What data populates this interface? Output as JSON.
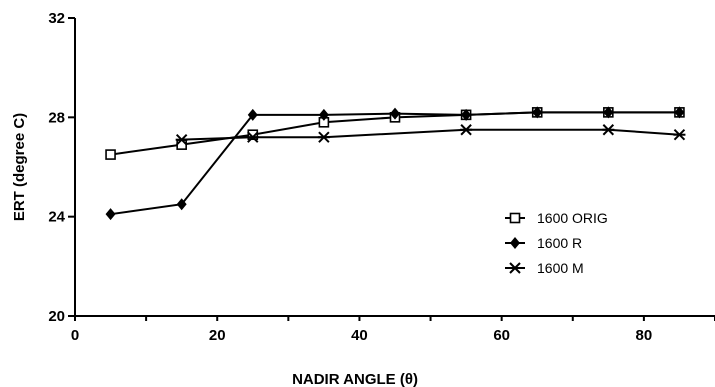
{
  "chart_data": {
    "type": "line",
    "title": "",
    "xlabel": "NADIR ANGLE (θ)",
    "ylabel": "ERT (degree C)",
    "xlim": [
      0,
      90
    ],
    "ylim": [
      20,
      32
    ],
    "xticks": [
      0,
      20,
      40,
      60,
      80
    ],
    "yticks": [
      20,
      24,
      28,
      32
    ],
    "x_minor_step": 10,
    "grid": false,
    "legend_position": "right-center",
    "x": [
      5,
      15,
      25,
      35,
      45,
      55,
      65,
      75,
      85
    ],
    "series": [
      {
        "name": "1600 ORIG",
        "marker": "open-square",
        "color": "#000000",
        "values": [
          26.5,
          26.9,
          27.3,
          27.8,
          28.0,
          28.1,
          28.2,
          28.2,
          28.2
        ]
      },
      {
        "name": "1600 R",
        "marker": "filled-diamond",
        "color": "#000000",
        "values": [
          24.1,
          24.5,
          28.1,
          28.1,
          28.15,
          28.1,
          28.2,
          28.2,
          28.2
        ]
      },
      {
        "name": "1600 M",
        "marker": "asterisk",
        "color": "#000000",
        "values": [
          null,
          27.1,
          27.2,
          27.2,
          null,
          27.5,
          null,
          27.5,
          27.3
        ]
      }
    ]
  }
}
